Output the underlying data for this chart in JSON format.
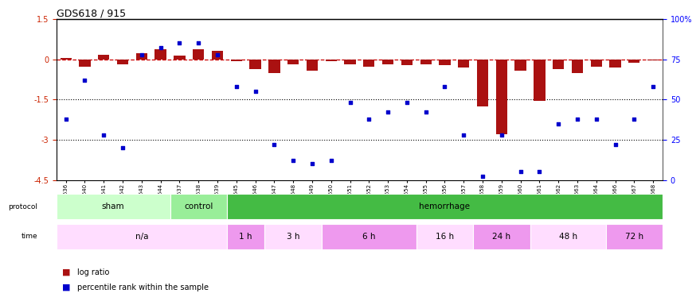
{
  "title": "GDS618 / 915",
  "samples": [
    "GSM16636",
    "GSM16640",
    "GSM16641",
    "GSM16642",
    "GSM16643",
    "GSM16644",
    "GSM16637",
    "GSM16638",
    "GSM16639",
    "GSM16645",
    "GSM16646",
    "GSM16647",
    "GSM16648",
    "GSM16649",
    "GSM16650",
    "GSM16651",
    "GSM16652",
    "GSM16653",
    "GSM16654",
    "GSM16655",
    "GSM16656",
    "GSM16657",
    "GSM16658",
    "GSM16659",
    "GSM16660",
    "GSM16661",
    "GSM16662",
    "GSM16663",
    "GSM16664",
    "GSM16666",
    "GSM16667",
    "GSM16668"
  ],
  "log_ratio": [
    0.05,
    -0.28,
    0.18,
    -0.18,
    0.22,
    0.38,
    0.13,
    0.38,
    0.32,
    -0.08,
    -0.38,
    -0.52,
    -0.18,
    -0.44,
    -0.08,
    -0.18,
    -0.28,
    -0.18,
    -0.22,
    -0.18,
    -0.22,
    -0.32,
    -1.75,
    -2.8,
    -0.42,
    -1.55,
    -0.38,
    -0.52,
    -0.28,
    -0.32,
    -0.12,
    -0.05
  ],
  "percentile_rank": [
    38,
    62,
    28,
    20,
    78,
    82,
    85,
    85,
    78,
    58,
    55,
    22,
    12,
    10,
    12,
    48,
    38,
    42,
    48,
    42,
    58,
    28,
    2,
    28,
    5,
    5,
    35,
    38,
    38,
    22,
    38,
    58
  ],
  "protocol_groups": [
    {
      "label": "sham",
      "start": 0,
      "end": 6,
      "color": "#ccffcc"
    },
    {
      "label": "control",
      "start": 6,
      "end": 9,
      "color": "#99ee99"
    },
    {
      "label": "hemorrhage",
      "start": 9,
      "end": 32,
      "color": "#44bb44"
    }
  ],
  "time_groups": [
    {
      "label": "n/a",
      "start": 0,
      "end": 9,
      "color": "#ffddff"
    },
    {
      "label": "1 h",
      "start": 9,
      "end": 11,
      "color": "#ee99ee"
    },
    {
      "label": "3 h",
      "start": 11,
      "end": 14,
      "color": "#ffddff"
    },
    {
      "label": "6 h",
      "start": 14,
      "end": 19,
      "color": "#ee99ee"
    },
    {
      "label": "16 h",
      "start": 19,
      "end": 22,
      "color": "#ffddff"
    },
    {
      "label": "24 h",
      "start": 22,
      "end": 25,
      "color": "#ee99ee"
    },
    {
      "label": "48 h",
      "start": 25,
      "end": 29,
      "color": "#ffddff"
    },
    {
      "label": "72 h",
      "start": 29,
      "end": 32,
      "color": "#ee99ee"
    }
  ],
  "ylim_left": [
    -4.5,
    1.5
  ],
  "ylim_right": [
    0,
    100
  ],
  "hline_zero_color": "#cc0000",
  "hline_dotted_vals": [
    -1.5,
    -3.0
  ],
  "bar_color": "#aa1111",
  "dot_color": "#0000cc",
  "dot_size": 12,
  "bar_width": 0.6
}
